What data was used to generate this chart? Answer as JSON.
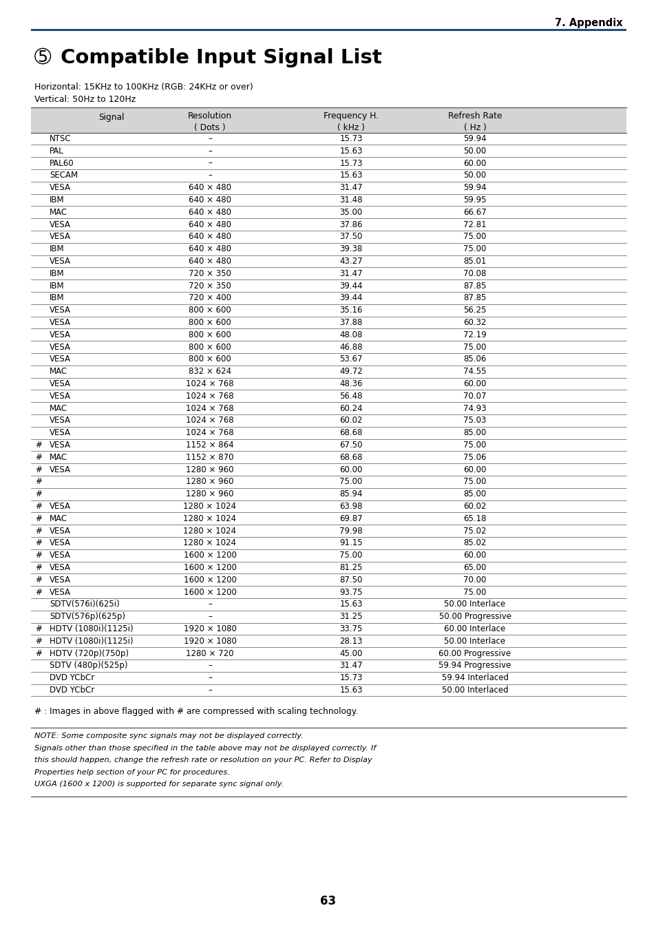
{
  "page_header": "7. Appendix",
  "header_line_color": "#1f4e79",
  "title_number": "➄",
  "title_text": "Compatible Input Signal List",
  "subtitle1": "Horizontal: 15KHz to 100KHz (RGB: 24KHz or over)",
  "subtitle2": "Vertical: 50Hz to 120Hz",
  "header_bg": "#d4d4d4",
  "table_rows": [
    [
      "",
      "NTSC",
      "–",
      "15.73",
      "59.94"
    ],
    [
      "",
      "PAL",
      "–",
      "15.63",
      "50.00"
    ],
    [
      "",
      "PAL60",
      "–",
      "15.73",
      "60.00"
    ],
    [
      "",
      "SECAM",
      "–",
      "15.63",
      "50.00"
    ],
    [
      "",
      "VESA",
      "640 × 480",
      "31.47",
      "59.94"
    ],
    [
      "",
      "IBM",
      "640 × 480",
      "31.48",
      "59.95"
    ],
    [
      "",
      "MAC",
      "640 × 480",
      "35.00",
      "66.67"
    ],
    [
      "",
      "VESA",
      "640 × 480",
      "37.86",
      "72.81"
    ],
    [
      "",
      "VESA",
      "640 × 480",
      "37.50",
      "75.00"
    ],
    [
      "",
      "IBM",
      "640 × 480",
      "39.38",
      "75.00"
    ],
    [
      "",
      "VESA",
      "640 × 480",
      "43.27",
      "85.01"
    ],
    [
      "",
      "IBM",
      "720 × 350",
      "31.47",
      "70.08"
    ],
    [
      "",
      "IBM",
      "720 × 350",
      "39.44",
      "87.85"
    ],
    [
      "",
      "IBM",
      "720 × 400",
      "39.44",
      "87.85"
    ],
    [
      "",
      "VESA",
      "800 × 600",
      "35.16",
      "56.25"
    ],
    [
      "",
      "VESA",
      "800 × 600",
      "37.88",
      "60.32"
    ],
    [
      "",
      "VESA",
      "800 × 600",
      "48.08",
      "72.19"
    ],
    [
      "",
      "VESA",
      "800 × 600",
      "46.88",
      "75.00"
    ],
    [
      "",
      "VESA",
      "800 × 600",
      "53.67",
      "85.06"
    ],
    [
      "",
      "MAC",
      "832 × 624",
      "49.72",
      "74.55"
    ],
    [
      "",
      "VESA",
      "1024 × 768",
      "48.36",
      "60.00"
    ],
    [
      "",
      "VESA",
      "1024 × 768",
      "56.48",
      "70.07"
    ],
    [
      "",
      "MAC",
      "1024 × 768",
      "60.24",
      "74.93"
    ],
    [
      "",
      "VESA",
      "1024 × 768",
      "60.02",
      "75.03"
    ],
    [
      "",
      "VESA",
      "1024 × 768",
      "68.68",
      "85.00"
    ],
    [
      "#",
      "VESA",
      "1152 × 864",
      "67.50",
      "75.00"
    ],
    [
      "#",
      "MAC",
      "1152 × 870",
      "68.68",
      "75.06"
    ],
    [
      "#",
      "VESA",
      "1280 × 960",
      "60.00",
      "60.00"
    ],
    [
      "#",
      "",
      "1280 × 960",
      "75.00",
      "75.00"
    ],
    [
      "#",
      "",
      "1280 × 960",
      "85.94",
      "85.00"
    ],
    [
      "#",
      "VESA",
      "1280 × 1024",
      "63.98",
      "60.02"
    ],
    [
      "#",
      "MAC",
      "1280 × 1024",
      "69.87",
      "65.18"
    ],
    [
      "#",
      "VESA",
      "1280 × 1024",
      "79.98",
      "75.02"
    ],
    [
      "#",
      "VESA",
      "1280 × 1024",
      "91.15",
      "85.02"
    ],
    [
      "#",
      "VESA",
      "1600 × 1200",
      "75.00",
      "60.00"
    ],
    [
      "#",
      "VESA",
      "1600 × 1200",
      "81.25",
      "65.00"
    ],
    [
      "#",
      "VESA",
      "1600 × 1200",
      "87.50",
      "70.00"
    ],
    [
      "#",
      "VESA",
      "1600 × 1200",
      "93.75",
      "75.00"
    ],
    [
      "",
      "SDTV(576i)(625i)",
      "–",
      "15.63",
      "50.00 Interlace"
    ],
    [
      "",
      "SDTV(576p)(625p)",
      "–",
      "31.25",
      "50.00 Progressive"
    ],
    [
      "#",
      "HDTV (1080i)(1125i)",
      "1920 × 1080",
      "33.75",
      "60.00 Interlace"
    ],
    [
      "#",
      "HDTV (1080i)(1125i)",
      "1920 × 1080",
      "28.13",
      "50.00 Interlace"
    ],
    [
      "#",
      "HDTV (720p)(750p)",
      "1280 × 720",
      "45.00",
      "60.00 Progressive"
    ],
    [
      "",
      "SDTV (480p)(525p)",
      "–",
      "31.47",
      "59.94 Progressive"
    ],
    [
      "",
      "DVD YCbCr",
      "–",
      "15.73",
      "59.94 Interlaced"
    ],
    [
      "",
      "DVD YCbCr",
      "–",
      "15.63",
      "50.00 Interlaced"
    ]
  ],
  "footnote": "# : Images in above flagged with # are compressed with scaling technology.",
  "note_line1": "NOTE: Some composite sync signals may not be displayed correctly.",
  "note_line2": "Signals other than those specified in the table above may not be displayed correctly. If",
  "note_line3": "this should happen, change the refresh rate or resolution on your PC. Refer to Display",
  "note_line4": "Properties help section of your PC for procedures.",
  "note_line5": "UXGA (1600 x 1200) is supported for separate sync signal only.",
  "page_number": "63",
  "bg_color": "#ffffff",
  "text_color": "#000000",
  "header_line_color2": "#555555"
}
